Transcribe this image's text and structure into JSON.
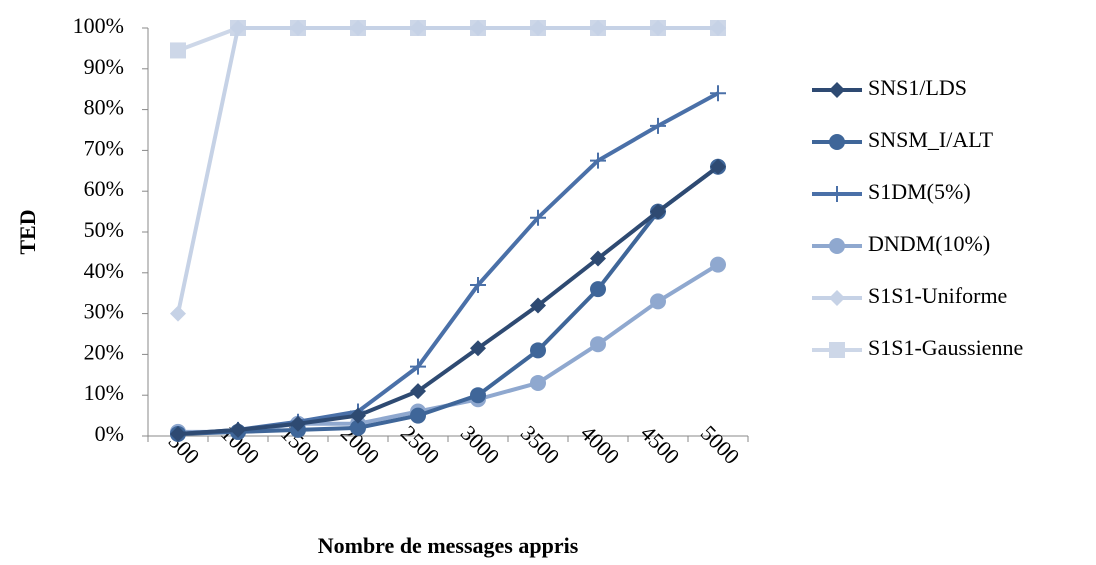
{
  "chart_data": {
    "type": "line",
    "x_label": "Nombre de messages appris",
    "y_label": "TED",
    "categories": [
      "500",
      "1000",
      "1500",
      "2000",
      "2500",
      "3000",
      "3500",
      "4000",
      "4500",
      "5000"
    ],
    "ylim": [
      0,
      100
    ],
    "yticks": [
      {
        "value": 0,
        "label": "0%"
      },
      {
        "value": 10,
        "label": "10%"
      },
      {
        "value": 20,
        "label": "20%"
      },
      {
        "value": 30,
        "label": "30%"
      },
      {
        "value": 40,
        "label": "40%"
      },
      {
        "value": 50,
        "label": "50%"
      },
      {
        "value": 60,
        "label": "60%"
      },
      {
        "value": 70,
        "label": "70%"
      },
      {
        "value": 80,
        "label": "80%"
      },
      {
        "value": 90,
        "label": "90%"
      },
      {
        "value": 100,
        "label": "100%"
      }
    ],
    "legend": "right",
    "series": [
      {
        "name": "SNS1/LDS",
        "color": "#2e4a72",
        "marker": "diamond",
        "values": [
          0.5,
          1.5,
          3,
          5,
          11,
          21.5,
          32,
          43.5,
          55,
          66
        ]
      },
      {
        "name": "SNSM_I/ALT",
        "color": "#3f6699",
        "marker": "circle",
        "values": [
          0.5,
          1,
          1.5,
          2,
          5,
          10,
          21,
          36,
          55,
          66
        ]
      },
      {
        "name": "S1DM(5%)",
        "color": "#4a70a8",
        "marker": "plus",
        "values": [
          0.5,
          1.5,
          3.5,
          6,
          17,
          37,
          53.5,
          67.5,
          76,
          84
        ]
      },
      {
        "name": "DNDM(10%)",
        "color": "#8fa8cf",
        "marker": "circle",
        "values": [
          1,
          1,
          3,
          3,
          6,
          9,
          13,
          22.5,
          33,
          42
        ]
      },
      {
        "name": "S1S1-Uniforme",
        "color": "#c6d2e6",
        "marker": "diamond",
        "values": [
          30,
          100,
          100,
          100,
          100,
          100,
          100,
          100,
          100,
          100
        ]
      },
      {
        "name": "S1S1-Gaussienne",
        "color": "#cdd7e8",
        "marker": "square",
        "values": [
          94.5,
          100,
          100,
          100,
          100,
          100,
          100,
          100,
          100,
          100
        ]
      }
    ]
  }
}
